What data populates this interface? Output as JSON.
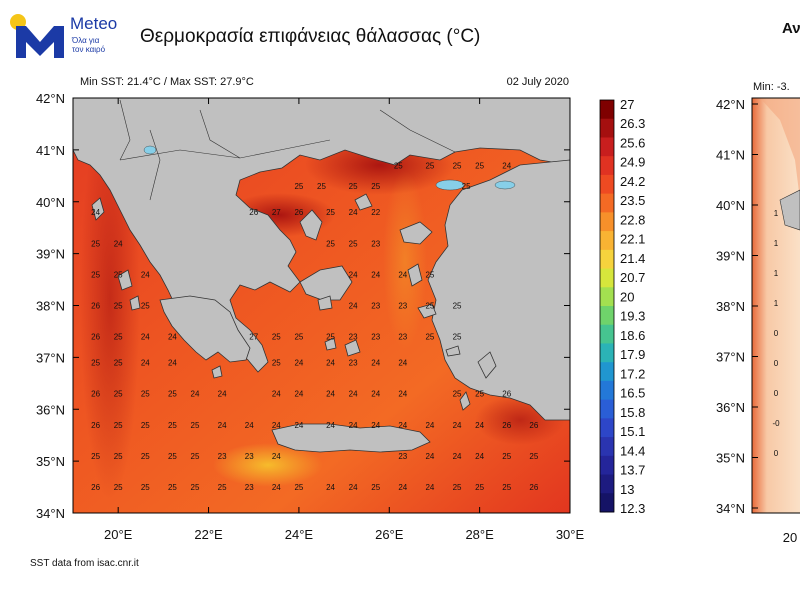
{
  "brand": {
    "name": "Meteo",
    "tagline_line1": "Όλα για",
    "tagline_line2": "τον καιρό",
    "colors": {
      "brand_blue": "#1b3aa6",
      "sun_yellow": "#f5c518"
    }
  },
  "header": {
    "title": "Θερμοκρασία επιφάνειας θάλασσας (°C)"
  },
  "map": {
    "stats_text": "Min SST: 21.4°C / Max SST: 27.9°C",
    "date": "02 July 2020",
    "source": "SST data from isac.cnr.it",
    "lon_labels": [
      "20°E",
      "22°E",
      "24°E",
      "26°E",
      "28°E",
      "30°E"
    ],
    "lat_labels": [
      "42°N",
      "41°N",
      "40°N",
      "39°N",
      "38°N",
      "37°N",
      "36°N",
      "35°N",
      "34°N"
    ],
    "lon_values": [
      20,
      22,
      24,
      26,
      28,
      30
    ],
    "lat_values": [
      42,
      41,
      40,
      39,
      38,
      37,
      36,
      35,
      34
    ],
    "lon_range": [
      19,
      30
    ],
    "lat_range": [
      34,
      42
    ],
    "land_color": "#c0c0c0",
    "colorbar": {
      "labels": [
        "27",
        "26.3",
        "25.6",
        "24.9",
        "24.2",
        "23.5",
        "22.8",
        "22.1",
        "21.4",
        "20.7",
        "20",
        "19.3",
        "18.6",
        "17.9",
        "17.2",
        "16.5",
        "15.8",
        "15.1",
        "14.4",
        "13.7",
        "13",
        "12.3"
      ],
      "colors": [
        "#7f0000",
        "#a50f0f",
        "#c81e1e",
        "#e03222",
        "#ee4a22",
        "#f46a24",
        "#f7902a",
        "#f9b333",
        "#f6d33d",
        "#d6e63c",
        "#a3e050",
        "#6fd36b",
        "#46c490",
        "#2bb3b6",
        "#2096d0",
        "#2378d8",
        "#2a5ed6",
        "#2d46c8",
        "#2a34b0",
        "#24259a",
        "#1d1b80",
        "#151366"
      ]
    },
    "sst_labels": [
      {
        "lon": 26.2,
        "lat": 40.7,
        "t": "25"
      },
      {
        "lon": 26.9,
        "lat": 40.7,
        "t": "25"
      },
      {
        "lon": 27.5,
        "lat": 40.7,
        "t": "25"
      },
      {
        "lon": 28.0,
        "lat": 40.7,
        "t": "25"
      },
      {
        "lon": 28.6,
        "lat": 40.7,
        "t": "24"
      },
      {
        "lon": 24.0,
        "lat": 40.3,
        "t": "25"
      },
      {
        "lon": 24.5,
        "lat": 40.3,
        "t": "25"
      },
      {
        "lon": 25.2,
        "lat": 40.3,
        "t": "25"
      },
      {
        "lon": 25.7,
        "lat": 40.3,
        "t": "25"
      },
      {
        "lon": 27.7,
        "lat": 40.3,
        "t": "25"
      },
      {
        "lon": 19.5,
        "lat": 39.8,
        "t": "24"
      },
      {
        "lon": 23.0,
        "lat": 39.8,
        "t": "26"
      },
      {
        "lon": 23.5,
        "lat": 39.8,
        "t": "27"
      },
      {
        "lon": 24.0,
        "lat": 39.8,
        "t": "26"
      },
      {
        "lon": 24.7,
        "lat": 39.8,
        "t": "25"
      },
      {
        "lon": 25.2,
        "lat": 39.8,
        "t": "24"
      },
      {
        "lon": 25.7,
        "lat": 39.8,
        "t": "22"
      },
      {
        "lon": 19.5,
        "lat": 39.2,
        "t": "25"
      },
      {
        "lon": 20.0,
        "lat": 39.2,
        "t": "24"
      },
      {
        "lon": 24.7,
        "lat": 39.2,
        "t": "25"
      },
      {
        "lon": 25.2,
        "lat": 39.2,
        "t": "25"
      },
      {
        "lon": 25.7,
        "lat": 39.2,
        "t": "23"
      },
      {
        "lon": 19.5,
        "lat": 38.6,
        "t": "25"
      },
      {
        "lon": 20.0,
        "lat": 38.6,
        "t": "25"
      },
      {
        "lon": 20.6,
        "lat": 38.6,
        "t": "24"
      },
      {
        "lon": 25.2,
        "lat": 38.6,
        "t": "24"
      },
      {
        "lon": 25.7,
        "lat": 38.6,
        "t": "24"
      },
      {
        "lon": 26.3,
        "lat": 38.6,
        "t": "24"
      },
      {
        "lon": 26.9,
        "lat": 38.6,
        "t": "25"
      },
      {
        "lon": 19.5,
        "lat": 38.0,
        "t": "26"
      },
      {
        "lon": 20.0,
        "lat": 38.0,
        "t": "25"
      },
      {
        "lon": 20.6,
        "lat": 38.0,
        "t": "25"
      },
      {
        "lon": 25.2,
        "lat": 38.0,
        "t": "24"
      },
      {
        "lon": 25.7,
        "lat": 38.0,
        "t": "23"
      },
      {
        "lon": 26.3,
        "lat": 38.0,
        "t": "23"
      },
      {
        "lon": 26.9,
        "lat": 38.0,
        "t": "25"
      },
      {
        "lon": 27.5,
        "lat": 38.0,
        "t": "25"
      },
      {
        "lon": 19.5,
        "lat": 37.4,
        "t": "26"
      },
      {
        "lon": 20.0,
        "lat": 37.4,
        "t": "25"
      },
      {
        "lon": 20.6,
        "lat": 37.4,
        "t": "24"
      },
      {
        "lon": 21.2,
        "lat": 37.4,
        "t": "24"
      },
      {
        "lon": 23.0,
        "lat": 37.4,
        "t": "27"
      },
      {
        "lon": 23.5,
        "lat": 37.4,
        "t": "25"
      },
      {
        "lon": 24.0,
        "lat": 37.4,
        "t": "25"
      },
      {
        "lon": 24.7,
        "lat": 37.4,
        "t": "25"
      },
      {
        "lon": 25.2,
        "lat": 37.4,
        "t": "23"
      },
      {
        "lon": 25.7,
        "lat": 37.4,
        "t": "23"
      },
      {
        "lon": 26.3,
        "lat": 37.4,
        "t": "23"
      },
      {
        "lon": 26.9,
        "lat": 37.4,
        "t": "25"
      },
      {
        "lon": 27.5,
        "lat": 37.4,
        "t": "25"
      },
      {
        "lon": 19.5,
        "lat": 36.9,
        "t": "25"
      },
      {
        "lon": 20.0,
        "lat": 36.9,
        "t": "25"
      },
      {
        "lon": 20.6,
        "lat": 36.9,
        "t": "24"
      },
      {
        "lon": 21.2,
        "lat": 36.9,
        "t": "24"
      },
      {
        "lon": 23.5,
        "lat": 36.9,
        "t": "25"
      },
      {
        "lon": 24.0,
        "lat": 36.9,
        "t": "24"
      },
      {
        "lon": 24.7,
        "lat": 36.9,
        "t": "24"
      },
      {
        "lon": 25.2,
        "lat": 36.9,
        "t": "23"
      },
      {
        "lon": 25.7,
        "lat": 36.9,
        "t": "24"
      },
      {
        "lon": 26.3,
        "lat": 36.9,
        "t": "24"
      },
      {
        "lon": 19.5,
        "lat": 36.3,
        "t": "26"
      },
      {
        "lon": 20.0,
        "lat": 36.3,
        "t": "25"
      },
      {
        "lon": 20.6,
        "lat": 36.3,
        "t": "25"
      },
      {
        "lon": 21.2,
        "lat": 36.3,
        "t": "25"
      },
      {
        "lon": 21.7,
        "lat": 36.3,
        "t": "24"
      },
      {
        "lon": 22.3,
        "lat": 36.3,
        "t": "24"
      },
      {
        "lon": 23.5,
        "lat": 36.3,
        "t": "24"
      },
      {
        "lon": 24.0,
        "lat": 36.3,
        "t": "24"
      },
      {
        "lon": 24.7,
        "lat": 36.3,
        "t": "24"
      },
      {
        "lon": 25.2,
        "lat": 36.3,
        "t": "24"
      },
      {
        "lon": 25.7,
        "lat": 36.3,
        "t": "24"
      },
      {
        "lon": 26.3,
        "lat": 36.3,
        "t": "24"
      },
      {
        "lon": 27.5,
        "lat": 36.3,
        "t": "25"
      },
      {
        "lon": 28.0,
        "lat": 36.3,
        "t": "25"
      },
      {
        "lon": 28.6,
        "lat": 36.3,
        "t": "26"
      },
      {
        "lon": 19.5,
        "lat": 35.7,
        "t": "26"
      },
      {
        "lon": 20.0,
        "lat": 35.7,
        "t": "25"
      },
      {
        "lon": 20.6,
        "lat": 35.7,
        "t": "25"
      },
      {
        "lon": 21.2,
        "lat": 35.7,
        "t": "25"
      },
      {
        "lon": 21.7,
        "lat": 35.7,
        "t": "25"
      },
      {
        "lon": 22.3,
        "lat": 35.7,
        "t": "24"
      },
      {
        "lon": 22.9,
        "lat": 35.7,
        "t": "24"
      },
      {
        "lon": 23.5,
        "lat": 35.7,
        "t": "24"
      },
      {
        "lon": 24.0,
        "lat": 35.7,
        "t": "24"
      },
      {
        "lon": 24.7,
        "lat": 35.7,
        "t": "24"
      },
      {
        "lon": 25.2,
        "lat": 35.7,
        "t": "24"
      },
      {
        "lon": 25.7,
        "lat": 35.7,
        "t": "24"
      },
      {
        "lon": 26.3,
        "lat": 35.7,
        "t": "24"
      },
      {
        "lon": 26.9,
        "lat": 35.7,
        "t": "24"
      },
      {
        "lon": 27.5,
        "lat": 35.7,
        "t": "24"
      },
      {
        "lon": 28.0,
        "lat": 35.7,
        "t": "24"
      },
      {
        "lon": 28.6,
        "lat": 35.7,
        "t": "26"
      },
      {
        "lon": 29.2,
        "lat": 35.7,
        "t": "26"
      },
      {
        "lon": 19.5,
        "lat": 35.1,
        "t": "25"
      },
      {
        "lon": 20.0,
        "lat": 35.1,
        "t": "25"
      },
      {
        "lon": 20.6,
        "lat": 35.1,
        "t": "25"
      },
      {
        "lon": 21.2,
        "lat": 35.1,
        "t": "25"
      },
      {
        "lon": 21.7,
        "lat": 35.1,
        "t": "25"
      },
      {
        "lon": 22.3,
        "lat": 35.1,
        "t": "23"
      },
      {
        "lon": 22.9,
        "lat": 35.1,
        "t": "23"
      },
      {
        "lon": 23.5,
        "lat": 35.1,
        "t": "24"
      },
      {
        "lon": 26.3,
        "lat": 35.1,
        "t": "23"
      },
      {
        "lon": 26.9,
        "lat": 35.1,
        "t": "24"
      },
      {
        "lon": 27.5,
        "lat": 35.1,
        "t": "24"
      },
      {
        "lon": 28.0,
        "lat": 35.1,
        "t": "24"
      },
      {
        "lon": 28.6,
        "lat": 35.1,
        "t": "25"
      },
      {
        "lon": 29.2,
        "lat": 35.1,
        "t": "25"
      },
      {
        "lon": 19.5,
        "lat": 34.5,
        "t": "26"
      },
      {
        "lon": 20.0,
        "lat": 34.5,
        "t": "25"
      },
      {
        "lon": 20.6,
        "lat": 34.5,
        "t": "25"
      },
      {
        "lon": 21.2,
        "lat": 34.5,
        "t": "25"
      },
      {
        "lon": 21.7,
        "lat": 34.5,
        "t": "25"
      },
      {
        "lon": 22.3,
        "lat": 34.5,
        "t": "25"
      },
      {
        "lon": 22.9,
        "lat": 34.5,
        "t": "23"
      },
      {
        "lon": 23.5,
        "lat": 34.5,
        "t": "24"
      },
      {
        "lon": 24.0,
        "lat": 34.5,
        "t": "25"
      },
      {
        "lon": 24.7,
        "lat": 34.5,
        "t": "24"
      },
      {
        "lon": 25.2,
        "lat": 34.5,
        "t": "24"
      },
      {
        "lon": 25.7,
        "lat": 34.5,
        "t": "25"
      },
      {
        "lon": 26.3,
        "lat": 34.5,
        "t": "24"
      },
      {
        "lon": 26.9,
        "lat": 34.5,
        "t": "24"
      },
      {
        "lon": 27.5,
        "lat": 34.5,
        "t": "25"
      },
      {
        "lon": 28.0,
        "lat": 34.5,
        "t": "25"
      },
      {
        "lon": 28.6,
        "lat": 34.5,
        "t": "25"
      },
      {
        "lon": 29.2,
        "lat": 34.5,
        "t": "26"
      }
    ]
  },
  "second_panel": {
    "title": "Αν",
    "stats_text": "Min: -3.",
    "lat_labels": [
      "42°N",
      "41°N",
      "40°N",
      "39°N",
      "38°N",
      "37°N",
      "36°N",
      "35°N",
      "34°N"
    ],
    "lon_label": "20",
    "anomaly_labels": [
      "1",
      "1",
      "1",
      "1",
      "0",
      "0",
      "0",
      "-0",
      "0"
    ]
  }
}
